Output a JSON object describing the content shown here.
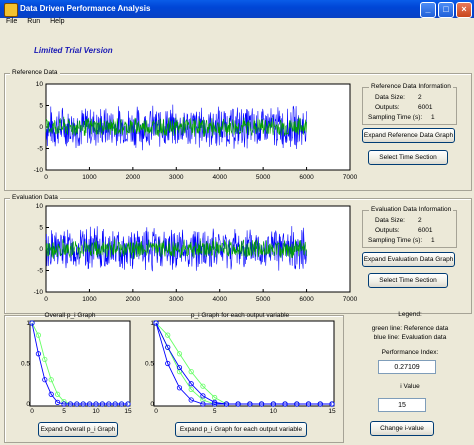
{
  "window": {
    "title": "Data Driven Performance Analysis",
    "minimize": "_",
    "maximize": "□",
    "close": "×"
  },
  "menu": [
    "File",
    "Run",
    "Help"
  ],
  "trial_text": "Limited Trial Version",
  "reference": {
    "panel_title": "Reference Data",
    "info_title": "Reference Data Information",
    "data_size_label": "Data Size:",
    "data_size_value": "2",
    "outputs_label": "Outputs:",
    "outputs_value": "6001",
    "sampling_label": "Sampling Time (s):",
    "sampling_value": "1",
    "expand_button": "Expand Reference Data Graph",
    "select_button": "Select Time Section"
  },
  "evaluation": {
    "panel_title": "Evaluation Data",
    "info_title": "Evaluation Data Information",
    "data_size_label": "Data Size:",
    "data_size_value": "2",
    "outputs_label": "Outputs:",
    "outputs_value": "6001",
    "sampling_label": "Sampling Time (s):",
    "sampling_value": "1",
    "expand_button": "Expand Evaluation Data Graph",
    "select_button": "Select Time Section"
  },
  "legend": {
    "title": "Legend:",
    "line1": "green line: Reference data",
    "line2": "blue line: Evaluation data"
  },
  "performance": {
    "label": "Performance Index:",
    "value": "0.27109"
  },
  "ivalue": {
    "label": "i Value",
    "value": "15",
    "button": "Change i-value"
  },
  "overall_graph": {
    "title": "Overall p_i Graph",
    "button": "Expand Overall p_i Graph"
  },
  "each_graph": {
    "title": "p_i Graph for each output variable",
    "button": "Expand p_i Graph for each output variable"
  },
  "colors": {
    "green": "#00a000",
    "blue": "#0000ff",
    "light_green": "#66ff66"
  },
  "chart_data": [
    {
      "type": "line",
      "name": "reference-signal",
      "title": "",
      "x_ticks": [
        "0",
        "1000",
        "2000",
        "3000",
        "4000",
        "5000",
        "6000",
        "7000"
      ],
      "y_ticks": [
        "10",
        "5",
        "0",
        "-5",
        "-10"
      ],
      "xlim": [
        0,
        7000
      ],
      "ylim": [
        -10,
        10
      ],
      "series": [
        {
          "color": "#0000ff",
          "amplitude": 5.5,
          "n": 6001
        },
        {
          "color": "#00a000",
          "amplitude": 2.5,
          "n": 6001
        }
      ]
    },
    {
      "type": "line",
      "name": "evaluation-signal",
      "title": "",
      "x_ticks": [
        "0",
        "1000",
        "2000",
        "3000",
        "4000",
        "5000",
        "6000",
        "7000"
      ],
      "y_ticks": [
        "10",
        "5",
        "0",
        "-5",
        "-10"
      ],
      "xlim": [
        0,
        7000
      ],
      "ylim": [
        -10,
        10
      ],
      "series": [
        {
          "color": "#0000ff",
          "amplitude": 5.5,
          "n": 6001
        },
        {
          "color": "#00a000",
          "amplitude": 2.5,
          "n": 6001
        }
      ]
    },
    {
      "type": "line",
      "name": "overall-pi",
      "title": "Overall p_i Graph",
      "x_ticks": [
        "0",
        "5",
        "10",
        "15"
      ],
      "y_ticks": [
        "1",
        "0.5",
        "0"
      ],
      "xlim": [
        0,
        15
      ],
      "ylim": [
        0,
        1
      ],
      "series": [
        {
          "color": "#66ff66",
          "x": [
            0,
            1,
            2,
            3,
            4,
            5,
            6,
            7,
            8,
            9,
            10,
            11,
            12,
            13,
            14,
            15
          ],
          "y": [
            1,
            0.85,
            0.55,
            0.3,
            0.12,
            0.03,
            0,
            0,
            0,
            0,
            0,
            0,
            0,
            0,
            0,
            0
          ]
        },
        {
          "color": "#0000ff",
          "x": [
            0,
            1,
            2,
            3,
            4,
            5,
            6,
            7,
            8,
            9,
            10,
            11,
            12,
            13,
            14,
            15
          ],
          "y": [
            1,
            0.62,
            0.3,
            0.12,
            0.02,
            0,
            0,
            0,
            0,
            0,
            0,
            0,
            0,
            0,
            0,
            0
          ]
        }
      ]
    },
    {
      "type": "line",
      "name": "each-pi",
      "title": "p_i Graph for each output variable",
      "x_ticks": [
        "0",
        "5",
        "10",
        "15"
      ],
      "y_ticks": [
        "1",
        "0.5",
        "0"
      ],
      "xlim": [
        0,
        15
      ],
      "ylim": [
        0,
        1
      ],
      "series": [
        {
          "color": "#66ff66",
          "x": [
            0,
            1,
            2,
            3,
            4,
            5,
            6,
            7,
            8,
            9,
            10,
            11,
            12,
            13,
            14,
            15
          ],
          "y": [
            1,
            0.85,
            0.62,
            0.4,
            0.22,
            0.08,
            0,
            0,
            0,
            0,
            0,
            0,
            0,
            0,
            0,
            0
          ]
        },
        {
          "color": "#66ff66",
          "x": [
            0,
            1,
            2,
            3,
            4,
            5,
            6,
            7,
            8,
            9,
            10,
            11,
            12,
            13,
            14,
            15
          ],
          "y": [
            1,
            0.7,
            0.4,
            0.18,
            0.05,
            0,
            0,
            0,
            0,
            0,
            0,
            0,
            0,
            0,
            0,
            0
          ]
        },
        {
          "color": "#0000ff",
          "x": [
            0,
            1,
            2,
            3,
            4,
            5,
            6,
            7,
            8,
            9,
            10,
            11,
            12,
            13,
            14,
            15
          ],
          "y": [
            1,
            0.7,
            0.45,
            0.25,
            0.1,
            0.02,
            0,
            0,
            0,
            0,
            0,
            0,
            0,
            0,
            0,
            0
          ]
        },
        {
          "color": "#0000ff",
          "x": [
            0,
            1,
            2,
            3,
            4,
            5,
            6,
            7,
            8,
            9,
            10,
            11,
            12,
            13,
            14,
            15
          ],
          "y": [
            1,
            0.5,
            0.2,
            0.05,
            0,
            0,
            0,
            0,
            0,
            0,
            0,
            0,
            0,
            0,
            0,
            0
          ]
        }
      ]
    }
  ]
}
